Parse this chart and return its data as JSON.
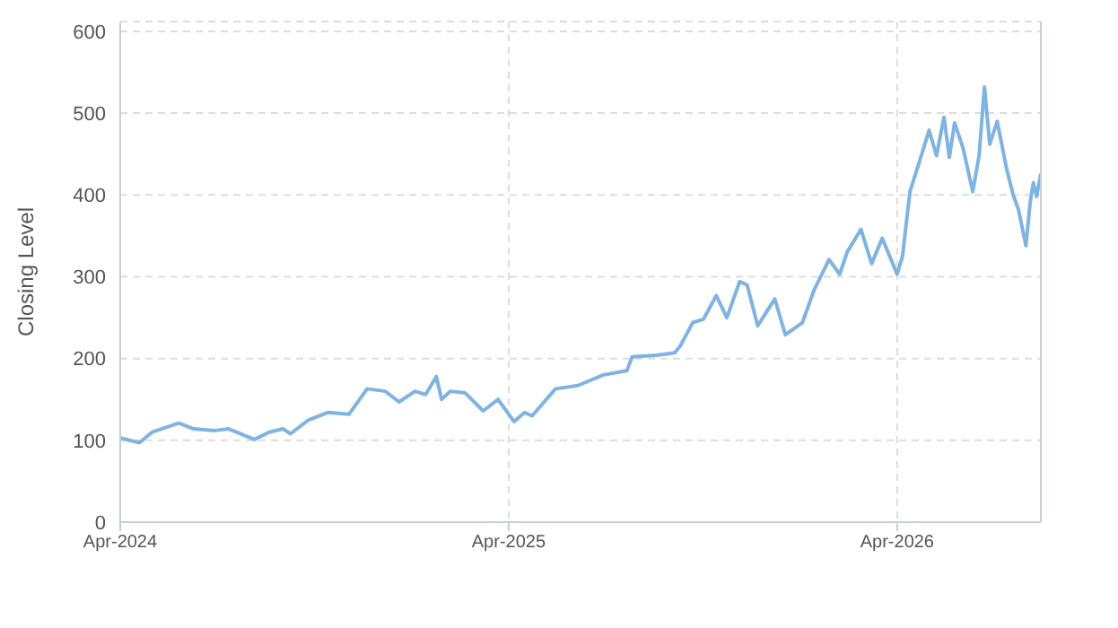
{
  "chart_data": {
    "type": "line",
    "ylabel": "Closing Level",
    "x": [
      "2024-04-01",
      "2024-04-19",
      "2024-05-01",
      "2024-05-26",
      "2024-06-09",
      "2024-06-29",
      "2024-07-12",
      "2024-08-05",
      "2024-08-19",
      "2024-09-01",
      "2024-09-08",
      "2024-09-25",
      "2024-10-13",
      "2024-11-02",
      "2024-11-19",
      "2024-12-06",
      "2024-12-19",
      "2025-01-03",
      "2025-01-13",
      "2025-01-23",
      "2025-01-28",
      "2025-02-05",
      "2025-02-19",
      "2025-03-08",
      "2025-03-22",
      "2025-04-06",
      "2025-04-16",
      "2025-04-23",
      "2025-05-15",
      "2025-06-05",
      "2025-06-29",
      "2025-07-21",
      "2025-07-26",
      "2025-08-18",
      "2025-09-04",
      "2025-09-09",
      "2025-09-21",
      "2025-10-01",
      "2025-10-13",
      "2025-10-23",
      "2025-11-04",
      "2025-11-11",
      "2025-11-21",
      "2025-12-07",
      "2025-12-17",
      "2026-01-02",
      "2026-01-13",
      "2026-01-27",
      "2026-02-06",
      "2026-02-13",
      "2026-02-26",
      "2026-03-08",
      "2026-03-18",
      "2026-04-01",
      "2026-04-06",
      "2026-04-13",
      "2026-04-21",
      "2026-05-01",
      "2026-05-08",
      "2026-05-15",
      "2026-05-20",
      "2026-05-25",
      "2026-06-02",
      "2026-06-11",
      "2026-06-17",
      "2026-06-22",
      "2026-06-27",
      "2026-07-04",
      "2026-07-13",
      "2026-07-19",
      "2026-07-24",
      "2026-07-31",
      "2026-08-04",
      "2026-08-07",
      "2026-08-10",
      "2026-08-14"
    ],
    "series": [
      {
        "color": "#7fb3e2",
        "values": [
          103,
          97,
          110,
          121,
          114,
          112,
          114,
          101,
          110,
          114,
          108,
          125,
          134,
          132,
          163,
          160,
          147,
          160,
          156,
          178,
          150,
          160,
          158,
          136,
          150,
          123,
          134,
          130,
          163,
          167,
          180,
          185,
          202,
          204,
          207,
          215,
          244,
          248,
          277,
          250,
          294,
          290,
          240,
          273,
          229,
          244,
          284,
          321,
          303,
          330,
          358,
          316,
          347,
          303,
          325,
          404,
          437,
          479,
          448,
          495,
          446,
          488,
          457,
          404,
          448,
          532,
          462,
          490,
          431,
          400,
          382,
          338,
          391,
          415,
          398,
          426
        ]
      }
    ],
    "xlim": [
      "2024-04-01",
      "2026-08-14"
    ],
    "xticks": [
      {
        "value": "2024-04-01",
        "label": "Apr-2024"
      },
      {
        "value": "2025-04-01",
        "label": "Apr-2025"
      },
      {
        "value": "2026-04-01",
        "label": "Apr-2026"
      }
    ],
    "ylim": [
      0,
      612
    ],
    "yticks": [
      0,
      100,
      200,
      300,
      400,
      500,
      600
    ],
    "grid": true,
    "marker": "none",
    "line_style": "solid",
    "legend": false
  }
}
